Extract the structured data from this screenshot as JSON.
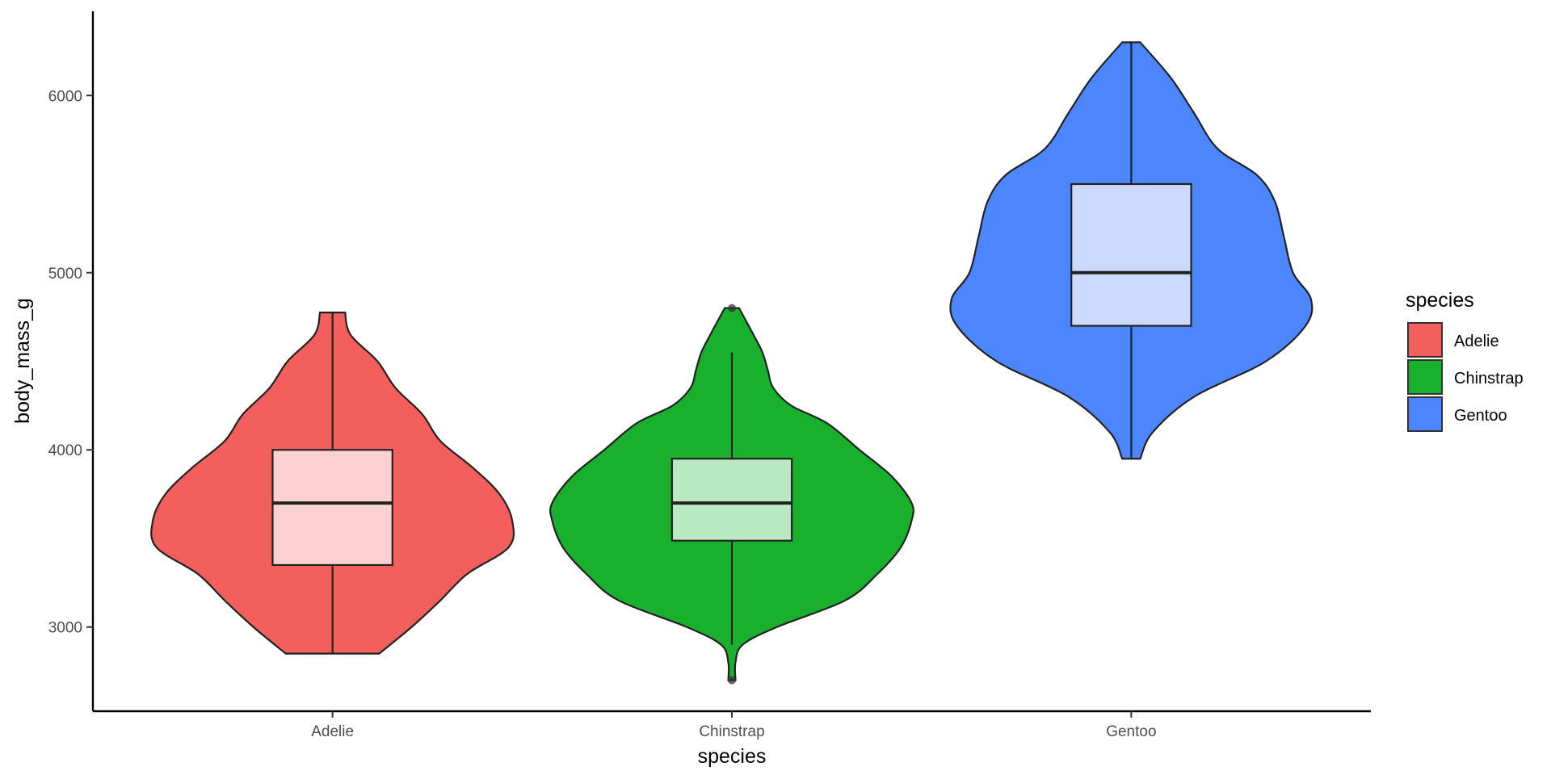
{
  "chart_data": {
    "type": "violin",
    "xlabel": "species",
    "ylabel": "body_mass_g",
    "categories": [
      "Adelie",
      "Chinstrap",
      "Gentoo"
    ],
    "yticks": [
      3000,
      4000,
      5000,
      6000
    ],
    "ylim": [
      2525,
      6475
    ],
    "grid": false,
    "legend": {
      "title": "species",
      "position": "right",
      "entries": [
        "Adelie",
        "Chinstrap",
        "Gentoo"
      ]
    },
    "colors": {
      "Adelie": "#F25F5C",
      "Chinstrap": "#19B02E",
      "Gentoo": "#4C86FF"
    },
    "box_colors": {
      "Adelie": "#FBD0D0",
      "Chinstrap": "#B9E8C1",
      "Gentoo": "#CCDAFF"
    },
    "series": [
      {
        "name": "Adelie",
        "box": {
          "min": 2850,
          "q1": 3350,
          "median": 3700,
          "q3": 4000,
          "max": 4775
        },
        "outliers": [],
        "density": [
          [
            2850,
            0.26
          ],
          [
            3000,
            0.44
          ],
          [
            3150,
            0.6
          ],
          [
            3300,
            0.75
          ],
          [
            3450,
            0.98
          ],
          [
            3600,
            1.0
          ],
          [
            3750,
            0.93
          ],
          [
            3900,
            0.78
          ],
          [
            4050,
            0.6
          ],
          [
            4200,
            0.5
          ],
          [
            4350,
            0.35
          ],
          [
            4500,
            0.25
          ],
          [
            4650,
            0.1
          ],
          [
            4775,
            0.07
          ]
        ]
      },
      {
        "name": "Chinstrap",
        "box": {
          "min": 2900,
          "q1": 3487.5,
          "median": 3700,
          "q3": 3950,
          "max": 4550
        },
        "outliers": [
          2700,
          4800
        ],
        "density": [
          [
            2700,
            0.02
          ],
          [
            2800,
            0.02
          ],
          [
            2900,
            0.06
          ],
          [
            3000,
            0.25
          ],
          [
            3150,
            0.63
          ],
          [
            3300,
            0.81
          ],
          [
            3450,
            0.94
          ],
          [
            3600,
            1.0
          ],
          [
            3700,
            1.0
          ],
          [
            3850,
            0.89
          ],
          [
            4000,
            0.71
          ],
          [
            4150,
            0.53
          ],
          [
            4250,
            0.33
          ],
          [
            4350,
            0.23
          ],
          [
            4450,
            0.2
          ],
          [
            4550,
            0.17
          ],
          [
            4650,
            0.12
          ],
          [
            4800,
            0.04
          ]
        ]
      },
      {
        "name": "Gentoo",
        "box": {
          "min": 3950,
          "q1": 4700,
          "median": 5000,
          "q3": 5500,
          "max": 6300
        },
        "outliers": [],
        "density": [
          [
            3950,
            0.05
          ],
          [
            4100,
            0.12
          ],
          [
            4300,
            0.35
          ],
          [
            4500,
            0.75
          ],
          [
            4700,
            0.97
          ],
          [
            4850,
            1.0
          ],
          [
            5000,
            0.9
          ],
          [
            5200,
            0.85
          ],
          [
            5400,
            0.8
          ],
          [
            5550,
            0.7
          ],
          [
            5700,
            0.48
          ],
          [
            5900,
            0.35
          ],
          [
            6100,
            0.22
          ],
          [
            6300,
            0.05
          ]
        ]
      }
    ]
  }
}
